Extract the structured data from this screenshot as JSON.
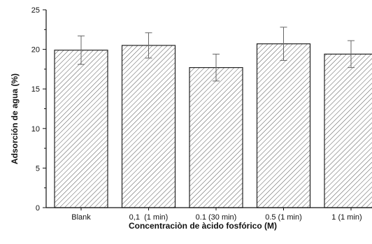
{
  "chart_data": {
    "type": "bar",
    "title": "",
    "xlabel": "Concentraciòn de àcido fosfórico (M)",
    "ylabel": "Adsorción de agua (%)",
    "ylim": [
      0,
      25
    ],
    "yticks": [
      0,
      5,
      10,
      15,
      20,
      25
    ],
    "grid": false,
    "bar_fill": "diagonal-hatch",
    "bar_color": "#555555",
    "categories": [
      "Blank",
      "0,1  (1 min)",
      "0.1 (30 min)",
      "0.5 (1 min)",
      "1 (1 min)"
    ],
    "values": [
      19.9,
      20.5,
      17.7,
      20.7,
      19.4
    ],
    "error": [
      1.8,
      1.6,
      1.7,
      2.1,
      1.7
    ]
  }
}
